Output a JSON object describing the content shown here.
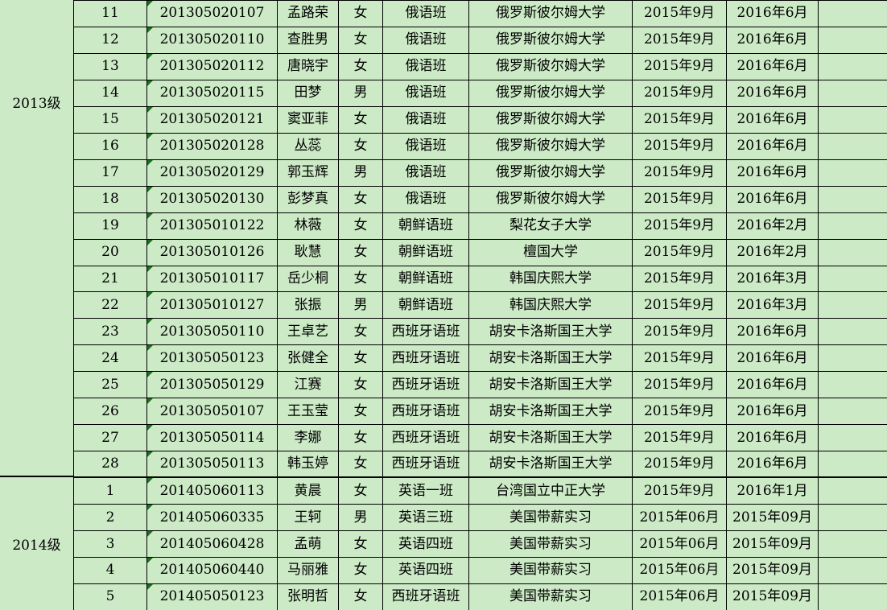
{
  "colors": {
    "cell_background": "#cceac6",
    "grid_border": "#000000",
    "error_indicator_green": "#1a721a"
  },
  "table": {
    "groups": [
      {
        "label": "2013级",
        "rows": [
          {
            "no": "11",
            "id": "201305020107",
            "name": "孟路荣",
            "gender": "女",
            "class": "俄语班",
            "school": "俄罗斯彼尔姆大学",
            "start": "2015年9月",
            "end": "2016年6月",
            "note": ""
          },
          {
            "no": "12",
            "id": "201305020110",
            "name": "查胜男",
            "gender": "女",
            "class": "俄语班",
            "school": "俄罗斯彼尔姆大学",
            "start": "2015年9月",
            "end": "2016年6月",
            "note": ""
          },
          {
            "no": "13",
            "id": "201305020112",
            "name": "唐晓宇",
            "gender": "女",
            "class": "俄语班",
            "school": "俄罗斯彼尔姆大学",
            "start": "2015年9月",
            "end": "2016年6月",
            "note": ""
          },
          {
            "no": "14",
            "id": "201305020115",
            "name": "田梦",
            "gender": "男",
            "class": "俄语班",
            "school": "俄罗斯彼尔姆大学",
            "start": "2015年9月",
            "end": "2016年6月",
            "note": ""
          },
          {
            "no": "15",
            "id": "201305020121",
            "name": "窦亚菲",
            "gender": "女",
            "class": "俄语班",
            "school": "俄罗斯彼尔姆大学",
            "start": "2015年9月",
            "end": "2016年6月",
            "note": ""
          },
          {
            "no": "16",
            "id": "201305020128",
            "name": "丛蕊",
            "gender": "女",
            "class": "俄语班",
            "school": "俄罗斯彼尔姆大学",
            "start": "2015年9月",
            "end": "2016年6月",
            "note": ""
          },
          {
            "no": "17",
            "id": "201305020129",
            "name": "郭玉辉",
            "gender": "男",
            "class": "俄语班",
            "school": "俄罗斯彼尔姆大学",
            "start": "2015年9月",
            "end": "2016年6月",
            "note": ""
          },
          {
            "no": "18",
            "id": "201305020130",
            "name": "彭梦真",
            "gender": "女",
            "class": "俄语班",
            "school": "俄罗斯彼尔姆大学",
            "start": "2015年9月",
            "end": "2016年6月",
            "note": ""
          },
          {
            "no": "19",
            "id": "201305010122",
            "name": "林薇",
            "gender": "女",
            "class": "朝鲜语班",
            "school": "梨花女子大学",
            "start": "2015年9月",
            "end": "2016年2月",
            "note": ""
          },
          {
            "no": "20",
            "id": "201305010126",
            "name": "耿慧",
            "gender": "女",
            "class": "朝鲜语班",
            "school": "檀国大学",
            "start": "2015年9月",
            "end": "2016年2月",
            "note": ""
          },
          {
            "no": "21",
            "id": "201305010117",
            "name": "岳少桐",
            "gender": "女",
            "class": "朝鲜语班",
            "school": "韩国庆熙大学",
            "start": "2015年9月",
            "end": "2016年3月",
            "note": ""
          },
          {
            "no": "22",
            "id": "201305010127",
            "name": "张振",
            "gender": "男",
            "class": "朝鲜语班",
            "school": "韩国庆熙大学",
            "start": "2015年9月",
            "end": "2016年3月",
            "note": ""
          },
          {
            "no": "23",
            "id": "201305050110",
            "name": "王卓艺",
            "gender": "女",
            "class": "西班牙语班",
            "school": "胡安卡洛斯国王大学",
            "start": "2015年9月",
            "end": "2016年6月",
            "note": ""
          },
          {
            "no": "24",
            "id": "201305050123",
            "name": "张健全",
            "gender": "女",
            "class": "西班牙语班",
            "school": "胡安卡洛斯国王大学",
            "start": "2015年9月",
            "end": "2016年6月",
            "note": ""
          },
          {
            "no": "25",
            "id": "201305050129",
            "name": "江赛",
            "gender": "女",
            "class": "西班牙语班",
            "school": "胡安卡洛斯国王大学",
            "start": "2015年9月",
            "end": "2016年6月",
            "note": ""
          },
          {
            "no": "26",
            "id": "201305050107",
            "name": "王玉莹",
            "gender": "女",
            "class": "西班牙语班",
            "school": "胡安卡洛斯国王大学",
            "start": "2015年9月",
            "end": "2016年6月",
            "note": ""
          },
          {
            "no": "27",
            "id": "201305050114",
            "name": "李娜",
            "gender": "女",
            "class": "西班牙语班",
            "school": "胡安卡洛斯国王大学",
            "start": "2015年9月",
            "end": "2016年6月",
            "note": ""
          },
          {
            "no": "28",
            "id": "201305050113",
            "name": "韩玉婷",
            "gender": "女",
            "class": "西班牙语班",
            "school": "胡安卡洛斯国王大学",
            "start": "2015年9月",
            "end": "2016年6月",
            "note": ""
          }
        ]
      },
      {
        "label": "2014级",
        "rows": [
          {
            "no": "1",
            "id": "201405060113",
            "name": "黄晨",
            "gender": "女",
            "class": "英语一班",
            "school": "台湾国立中正大学",
            "start": "2015年9月",
            "end": "2016年1月",
            "note": ""
          },
          {
            "no": "2",
            "id": "201405060335",
            "name": "王轲",
            "gender": "男",
            "class": "英语三班",
            "school": "美国带薪实习",
            "start": "2015年06月",
            "end": "2015年09月",
            "note": ""
          },
          {
            "no": "3",
            "id": "201405060428",
            "name": "孟萌",
            "gender": "女",
            "class": "英语四班",
            "school": "美国带薪实习",
            "start": "2015年06月",
            "end": "2015年09月",
            "note": ""
          },
          {
            "no": "4",
            "id": "201405060440",
            "name": "马丽雅",
            "gender": "女",
            "class": "英语四班",
            "school": "美国带薪实习",
            "start": "2015年06月",
            "end": "2015年09月",
            "note": ""
          },
          {
            "no": "5",
            "id": "201405050123",
            "name": "张明哲",
            "gender": "女",
            "class": "西班牙语班",
            "school": "美国带薪实习",
            "start": "2015年06月",
            "end": "2015年09月",
            "note": ""
          }
        ]
      }
    ]
  }
}
